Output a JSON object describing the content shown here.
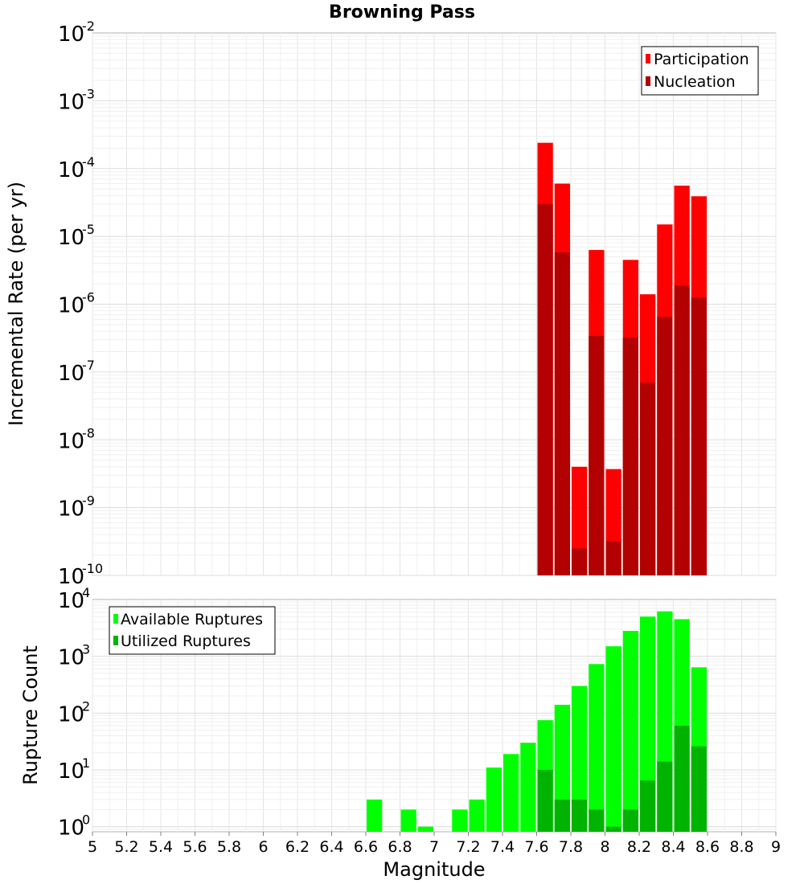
{
  "title": "Browning Pass",
  "chart_data": [
    {
      "type": "bar",
      "name": "rate-chart",
      "ylabel": "Incremental Rate (per yr)",
      "xlim": [
        5,
        9
      ],
      "ylog": true,
      "ylim_exp": [
        -10,
        -2
      ],
      "y_ticks": [
        {
          "base": "10",
          "exp": "-2",
          "value": 0.01
        },
        {
          "base": "10",
          "exp": "-3",
          "value": 0.001
        },
        {
          "base": "10",
          "exp": "-4",
          "value": 0.0001
        },
        {
          "base": "10",
          "exp": "-5",
          "value": 1e-05
        },
        {
          "base": "10",
          "exp": "-6",
          "value": 1e-06
        },
        {
          "base": "10",
          "exp": "-7",
          "value": 1e-07
        },
        {
          "base": "10",
          "exp": "-8",
          "value": 1e-08
        },
        {
          "base": "10",
          "exp": "-9",
          "value": 1e-09
        },
        {
          "base": "10",
          "exp": "-10",
          "value": 1e-10
        }
      ],
      "legend_position": "top-right",
      "series": [
        {
          "name": "Participation",
          "color": "#ff0000",
          "x": [
            7.65,
            7.75,
            7.85,
            7.95,
            8.05,
            8.15,
            8.25,
            8.35,
            8.45,
            8.55
          ],
          "values": [
            0.00024,
            6e-05,
            4e-09,
            6.3e-06,
            3.7e-09,
            4.5e-06,
            1.4e-06,
            1.5e-05,
            5.6e-05,
            3.9e-05
          ]
        },
        {
          "name": "Nucleation",
          "color": "#b30000",
          "x": [
            7.65,
            7.75,
            7.85,
            7.95,
            8.05,
            8.15,
            8.25,
            8.35,
            8.45,
            8.55
          ],
          "values": [
            3e-05,
            5.8e-06,
            2.5e-10,
            3.4e-07,
            3.2e-10,
            3.2e-07,
            7e-08,
            6.5e-07,
            1.9e-06,
            1.25e-06
          ]
        }
      ]
    },
    {
      "type": "bar",
      "name": "count-chart",
      "ylabel": "Rupture Count",
      "xlabel": "Magnitude",
      "xlim": [
        5,
        9
      ],
      "x_ticks": [
        "5",
        "5.2",
        "5.4",
        "5.6",
        "5.8",
        "6",
        "6.2",
        "6.4",
        "6.6",
        "6.8",
        "7",
        "7.2",
        "7.4",
        "7.6",
        "7.8",
        "8",
        "8.2",
        "8.4",
        "8.6",
        "8.8",
        "9"
      ],
      "ylog": true,
      "ylim_exp": [
        -0.09,
        4
      ],
      "y_ticks": [
        {
          "base": "10",
          "exp": "4",
          "value": 10000
        },
        {
          "base": "10",
          "exp": "3",
          "value": 1000
        },
        {
          "base": "10",
          "exp": "2",
          "value": 100
        },
        {
          "base": "10",
          "exp": "1",
          "value": 10
        },
        {
          "base": "10",
          "exp": "0",
          "value": 1
        }
      ],
      "legend_position": "top-left",
      "series": [
        {
          "name": "Available Ruptures",
          "color": "#00ff00",
          "x": [
            6.65,
            6.85,
            6.95,
            7.15,
            7.25,
            7.35,
            7.45,
            7.55,
            7.65,
            7.75,
            7.85,
            7.95,
            8.05,
            8.15,
            8.25,
            8.35,
            8.45,
            8.55
          ],
          "values": [
            3,
            2,
            1,
            2,
            3,
            11,
            19,
            30,
            75,
            140,
            300,
            730,
            1500,
            2800,
            5000,
            6200,
            4500,
            640
          ]
        },
        {
          "name": "Utilized Ruptures",
          "color": "#00b300",
          "x": [
            7.65,
            7.75,
            7.85,
            7.95,
            8.05,
            8.15,
            8.25,
            8.35,
            8.45,
            8.55
          ],
          "values": [
            10,
            3,
            3,
            2,
            1,
            2,
            6.5,
            14,
            60,
            26
          ]
        }
      ]
    }
  ]
}
